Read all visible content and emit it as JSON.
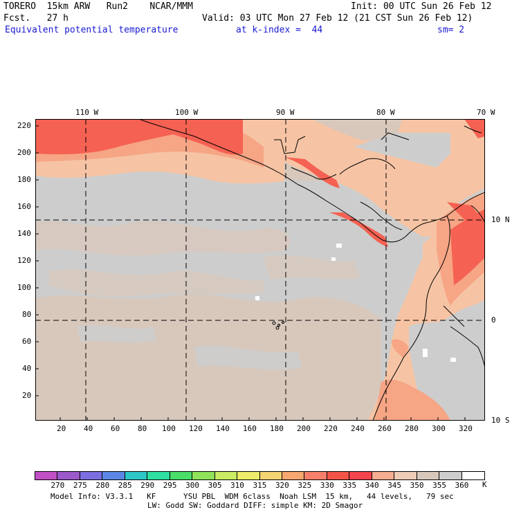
{
  "header": {
    "line1_left": "TORERO  15km ARW   Run2    NCAR/MMM",
    "line1_right": "Init: 00 UTC Sun 26 Feb 12",
    "line2_left": "Fcst.   27 h",
    "line2_right": "Valid: 03 UTC Mon 27 Feb 12 (21 CST Sun 26 Feb 12)",
    "field_name": "Equivalent potential temperature",
    "level": "at k-index =  44",
    "smoothing": "sm= 2"
  },
  "map": {
    "top_lon_labels": [
      "110 W",
      "100 W",
      "90 W",
      "80 W",
      "70 W"
    ],
    "right_lat_labels": [
      "10 N",
      "0",
      "10 S"
    ],
    "left_ticks": [
      "220",
      "200",
      "180",
      "160",
      "140",
      "120",
      "100",
      "80",
      "60",
      "40",
      "20"
    ],
    "bottom_ticks": [
      "20",
      "40",
      "60",
      "80",
      "100",
      "120",
      "140",
      "160",
      "180",
      "200",
      "220",
      "240",
      "260",
      "280",
      "300",
      "320"
    ]
  },
  "colorbar": {
    "labels": [
      "270",
      "275",
      "280",
      "285",
      "290",
      "295",
      "300",
      "305",
      "310",
      "315",
      "320",
      "325",
      "330",
      "335",
      "340",
      "345",
      "350",
      "355",
      "360"
    ],
    "unit": "K",
    "colors": [
      "#c24fc6",
      "#9b59c9",
      "#7c6ee0",
      "#5b86e4",
      "#2ec7c7",
      "#2fe0a3",
      "#49dd6a",
      "#8fe25a",
      "#c8ec64",
      "#ecec6a",
      "#f4d372",
      "#f7a76f",
      "#f7806a",
      "#f45448",
      "#f4444e",
      "#f6ad91",
      "#eecbb6",
      "#d8c8bc",
      "#cdcdcd",
      "#ffffff"
    ]
  },
  "footer": {
    "line1": "Model Info: V3.3.1   KF      YSU PBL  WDM 6class  Noah LSM  15 km,   44 levels,   79 sec",
    "line2": "LW: Godd SW: Goddard DIFF: simple KM: 2D Smagor"
  },
  "palette": {
    "land_gray": "#cdcdcd",
    "tan": "#d8c8bc",
    "light_salmon": "#f6c4a4",
    "salmon": "#f6a585",
    "red": "#f56152"
  }
}
